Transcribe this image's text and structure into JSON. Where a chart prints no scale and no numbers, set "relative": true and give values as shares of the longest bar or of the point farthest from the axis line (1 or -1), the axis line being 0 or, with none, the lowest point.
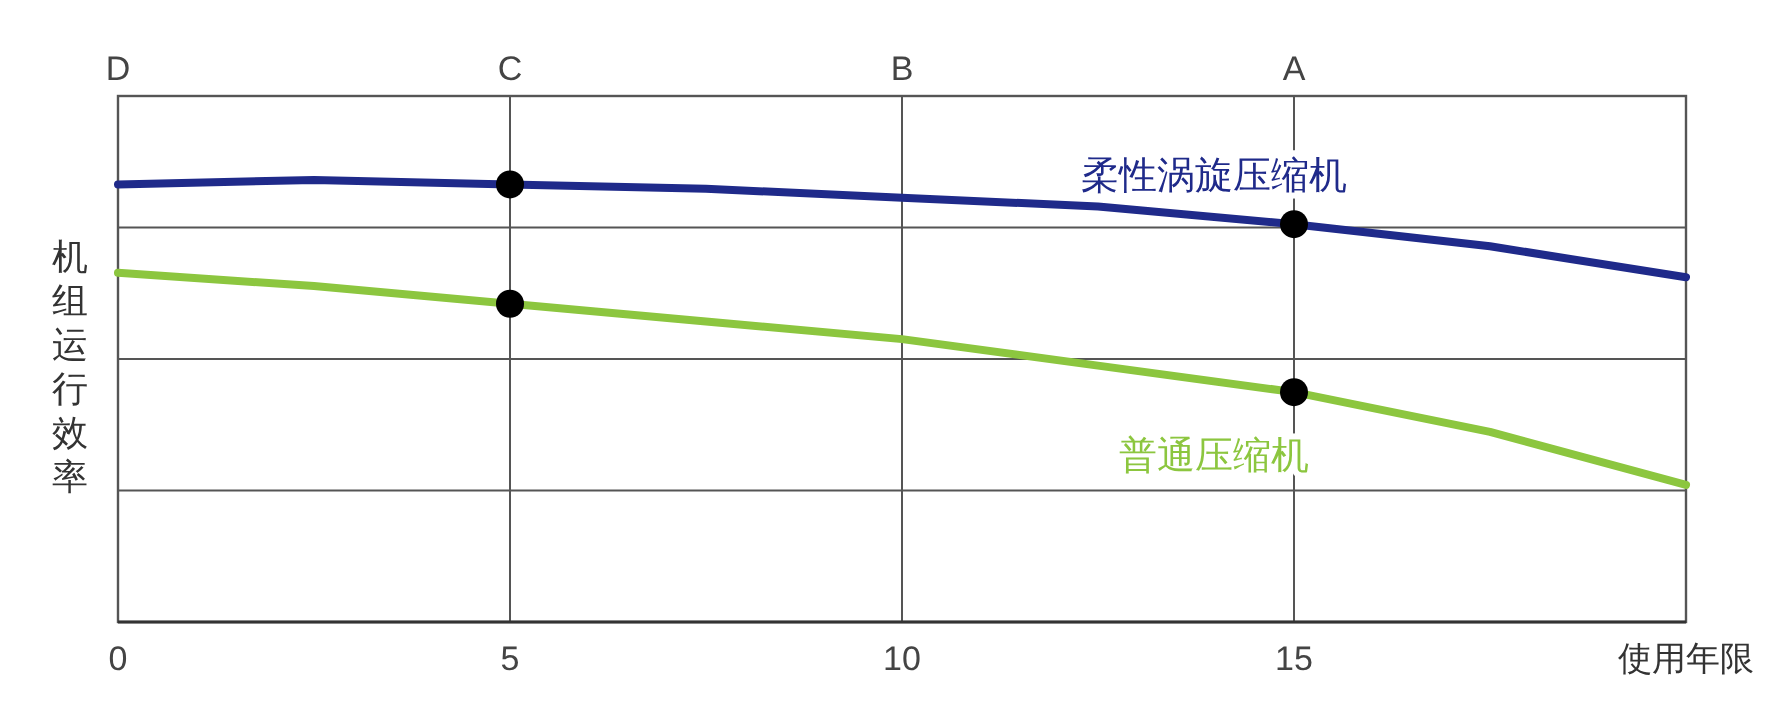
{
  "chart_data": {
    "type": "line",
    "relative": true,
    "xlabel": "使用年限",
    "ylabel": "机组运行效率",
    "xlim": [
      0,
      20
    ],
    "xticks": [
      0,
      5,
      10,
      15,
      {
        "value": 20,
        "label": null
      }
    ],
    "annotations": [
      "D",
      "C",
      "B",
      "A"
    ],
    "grid": true,
    "tick_labels": "x",
    "x": [
      0,
      2.5,
      5,
      7.5,
      10,
      12.5,
      15,
      17.5,
      20
    ],
    "series": [
      {
        "name": "柔性涡旋压缩机",
        "color": "#1f2a8a",
        "values": [
          0.99,
          1.0,
          0.99,
          0.98,
          0.96,
          0.94,
          0.9,
          0.85,
          0.78
        ]
      },
      {
        "name": "普通压缩机",
        "color": "#8cc63f",
        "values": [
          0.79,
          0.76,
          0.72,
          0.68,
          0.64,
          0.58,
          0.52,
          0.43,
          0.31
        ]
      },
      {
        "type": "scatter",
        "color": "#000000",
        "marker": "circle",
        "values": [
          null,
          null,
          0.99,
          null,
          null,
          null,
          0.9,
          null,
          null
        ]
      },
      {
        "type": "scatter",
        "color": "#000000",
        "marker": "circle",
        "values": [
          null,
          null,
          0.72,
          null,
          null,
          null,
          0.52,
          null,
          null
        ]
      }
    ]
  }
}
